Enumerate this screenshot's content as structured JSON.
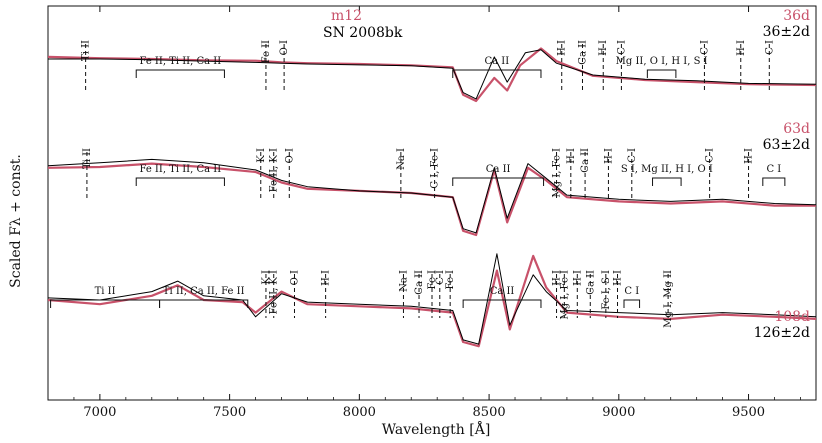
{
  "chart_data": {
    "type": "line",
    "title": "",
    "xlabel": "Wavelength [Å]",
    "ylabel": "Scaled Fλ + const.",
    "xlim": [
      6800,
      9760
    ],
    "x_ticks": [
      7000,
      7500,
      8000,
      8500,
      9000,
      9500
    ],
    "x_tick_labels": [
      "7000",
      "7500",
      "8000",
      "8500",
      "9000",
      "9500"
    ],
    "y_ticks": "none",
    "grid": false,
    "legend": {
      "model_name": "m12",
      "object_name": "SN 2008bk",
      "model_color": "#c8526a",
      "object_color": "#000000"
    },
    "epochs": [
      {
        "model_epoch": "36d",
        "observed_epoch": "36±2d"
      },
      {
        "model_epoch": "63d",
        "observed_epoch": "63±2d"
      },
      {
        "model_epoch": "108d",
        "observed_epoch": "126±2d"
      }
    ],
    "series": [
      {
        "name": "m12 36d",
        "color": "#c8526a",
        "offset": 2,
        "points": [
          [
            6800,
            0.55
          ],
          [
            7000,
            0.52
          ],
          [
            7200,
            0.5
          ],
          [
            7400,
            0.47
          ],
          [
            7600,
            0.46
          ],
          [
            7700,
            0.42
          ],
          [
            7800,
            0.4
          ],
          [
            8000,
            0.38
          ],
          [
            8200,
            0.35
          ],
          [
            8360,
            0.3
          ],
          [
            8400,
            -0.35
          ],
          [
            8450,
            -0.5
          ],
          [
            8520,
            0.05
          ],
          [
            8570,
            -0.25
          ],
          [
            8620,
            0.35
          ],
          [
            8700,
            0.75
          ],
          [
            8760,
            0.45
          ],
          [
            8900,
            0.1
          ],
          [
            9100,
            0.0
          ],
          [
            9300,
            -0.05
          ],
          [
            9500,
            -0.1
          ],
          [
            9760,
            -0.12
          ]
        ]
      },
      {
        "name": "SN 2008bk 36d",
        "color": "#000000",
        "offset": 2,
        "points": [
          [
            6800,
            0.5
          ],
          [
            7000,
            0.5
          ],
          [
            7200,
            0.48
          ],
          [
            7400,
            0.45
          ],
          [
            7600,
            0.42
          ],
          [
            7700,
            0.4
          ],
          [
            7800,
            0.38
          ],
          [
            8000,
            0.36
          ],
          [
            8200,
            0.34
          ],
          [
            8360,
            0.28
          ],
          [
            8400,
            -0.3
          ],
          [
            8450,
            -0.45
          ],
          [
            8520,
            0.55
          ],
          [
            8570,
            -0.05
          ],
          [
            8640,
            0.65
          ],
          [
            8700,
            0.72
          ],
          [
            8760,
            0.4
          ],
          [
            8900,
            0.12
          ],
          [
            9100,
            0.02
          ],
          [
            9300,
            -0.02
          ],
          [
            9500,
            -0.08
          ],
          [
            9760,
            -0.1
          ]
        ]
      },
      {
        "name": "m12 63d",
        "color": "#c8526a",
        "offset": 1,
        "points": [
          [
            6800,
            0.6
          ],
          [
            7000,
            0.62
          ],
          [
            7200,
            0.7
          ],
          [
            7400,
            0.62
          ],
          [
            7600,
            0.5
          ],
          [
            7700,
            0.25
          ],
          [
            7800,
            0.1
          ],
          [
            8000,
            0.05
          ],
          [
            8200,
            0.0
          ],
          [
            8360,
            -0.1
          ],
          [
            8400,
            -0.9
          ],
          [
            8450,
            -1.0
          ],
          [
            8520,
            0.55
          ],
          [
            8570,
            -0.7
          ],
          [
            8650,
            0.6
          ],
          [
            8720,
            0.3
          ],
          [
            8800,
            -0.1
          ],
          [
            9000,
            -0.2
          ],
          [
            9200,
            -0.25
          ],
          [
            9400,
            -0.2
          ],
          [
            9600,
            -0.3
          ],
          [
            9760,
            -0.3
          ]
        ]
      },
      {
        "name": "SN 2008bk 63d",
        "color": "#000000",
        "offset": 1,
        "points": [
          [
            6800,
            0.65
          ],
          [
            7000,
            0.72
          ],
          [
            7200,
            0.8
          ],
          [
            7400,
            0.72
          ],
          [
            7600,
            0.55
          ],
          [
            7700,
            0.3
          ],
          [
            7800,
            0.15
          ],
          [
            8000,
            0.05
          ],
          [
            8200,
            0.0
          ],
          [
            8360,
            -0.1
          ],
          [
            8400,
            -0.85
          ],
          [
            8450,
            -0.95
          ],
          [
            8520,
            0.6
          ],
          [
            8570,
            -0.6
          ],
          [
            8650,
            0.7
          ],
          [
            8720,
            0.35
          ],
          [
            8800,
            -0.05
          ],
          [
            9000,
            -0.15
          ],
          [
            9200,
            -0.2
          ],
          [
            9400,
            -0.15
          ],
          [
            9600,
            -0.25
          ],
          [
            9760,
            -0.28
          ]
        ]
      },
      {
        "name": "m12 108d",
        "color": "#c8526a",
        "offset": 0,
        "points": [
          [
            6800,
            0.0
          ],
          [
            7000,
            -0.1
          ],
          [
            7200,
            0.1
          ],
          [
            7300,
            0.35
          ],
          [
            7400,
            0.0
          ],
          [
            7550,
            -0.05
          ],
          [
            7600,
            -0.3
          ],
          [
            7700,
            0.2
          ],
          [
            7800,
            -0.1
          ],
          [
            8000,
            -0.15
          ],
          [
            8200,
            -0.2
          ],
          [
            8360,
            -0.3
          ],
          [
            8400,
            -1.0
          ],
          [
            8460,
            -1.1
          ],
          [
            8530,
            0.7
          ],
          [
            8580,
            -0.7
          ],
          [
            8670,
            1.05
          ],
          [
            8720,
            0.3
          ],
          [
            8800,
            -0.3
          ],
          [
            9000,
            -0.4
          ],
          [
            9200,
            -0.45
          ],
          [
            9400,
            -0.35
          ],
          [
            9600,
            -0.4
          ],
          [
            9760,
            -0.45
          ]
        ]
      },
      {
        "name": "SN 2008bk 126d",
        "color": "#000000",
        "offset": 0,
        "points": [
          [
            6800,
            0.05
          ],
          [
            7000,
            0.0
          ],
          [
            7200,
            0.2
          ],
          [
            7300,
            0.45
          ],
          [
            7400,
            0.1
          ],
          [
            7550,
            0.0
          ],
          [
            7600,
            -0.4
          ],
          [
            7700,
            0.15
          ],
          [
            7800,
            -0.05
          ],
          [
            8000,
            -0.1
          ],
          [
            8200,
            -0.15
          ],
          [
            8360,
            -0.25
          ],
          [
            8400,
            -0.95
          ],
          [
            8460,
            -1.05
          ],
          [
            8530,
            1.1
          ],
          [
            8580,
            -0.6
          ],
          [
            8670,
            0.6
          ],
          [
            8720,
            0.2
          ],
          [
            8800,
            -0.25
          ],
          [
            9000,
            -0.3
          ],
          [
            9200,
            -0.35
          ],
          [
            9400,
            -0.3
          ],
          [
            9600,
            -0.35
          ],
          [
            9760,
            -0.4
          ]
        ]
      }
    ],
    "annotations": [
      {
        "panel": 0,
        "label": "Ti II",
        "x": 6945
      },
      {
        "panel": 0,
        "label": "Fe II, Ti II, Ca II",
        "x_range": [
          7140,
          7480
        ]
      },
      {
        "panel": 0,
        "label": "Fe II",
        "x": 7640
      },
      {
        "panel": 0,
        "label": "O I",
        "x": 7710
      },
      {
        "panel": 0,
        "label": "Ca II",
        "x_range": [
          8360,
          8700
        ]
      },
      {
        "panel": 0,
        "label": "H I",
        "x": 8780
      },
      {
        "panel": 0,
        "label": "Ca II",
        "x": 8860
      },
      {
        "panel": 0,
        "label": "H I",
        "x": 8940
      },
      {
        "panel": 0,
        "label": "C I",
        "x": 9010
      },
      {
        "panel": 0,
        "label": "Mg II, O I, H I, S I",
        "x_range": [
          9110,
          9220
        ]
      },
      {
        "panel": 0,
        "label": "C I",
        "x": 9330
      },
      {
        "panel": 0,
        "label": "H I",
        "x": 9470
      },
      {
        "panel": 0,
        "label": "C I",
        "x": 9580
      },
      {
        "panel": 1,
        "label": "Ti II",
        "x": 6950
      },
      {
        "panel": 1,
        "label": "Fe II, Ti II, Ca II",
        "x_range": [
          7140,
          7480
        ]
      },
      {
        "panel": 1,
        "label": "K I",
        "x": 7620
      },
      {
        "panel": 1,
        "label": "Fe II, K I",
        "x": 7670
      },
      {
        "panel": 1,
        "label": "O I",
        "x": 7730
      },
      {
        "panel": 1,
        "label": "Na I",
        "x": 8160
      },
      {
        "panel": 1,
        "label": "C I, Fe I",
        "x": 8290
      },
      {
        "panel": 1,
        "label": "Ca II",
        "x_range": [
          8360,
          8710
        ]
      },
      {
        "panel": 1,
        "label": "Mg I, Fe I",
        "x": 8760
      },
      {
        "panel": 1,
        "label": "H I",
        "x": 8815
      },
      {
        "panel": 1,
        "label": "Ca II",
        "x": 8870
      },
      {
        "panel": 1,
        "label": "H I",
        "x": 8960
      },
      {
        "panel": 1,
        "label": "C I",
        "x": 9050
      },
      {
        "panel": 1,
        "label": "S I, Mg II, H I, O I",
        "x_range": [
          9130,
          9240
        ]
      },
      {
        "panel": 1,
        "label": "C I",
        "x": 9350
      },
      {
        "panel": 1,
        "label": "H I",
        "x": 9500
      },
      {
        "panel": 1,
        "label": "C I",
        "x_range": [
          9555,
          9640
        ]
      },
      {
        "panel": 2,
        "label": "Ti II",
        "x_range": [
          6810,
          7230
        ]
      },
      {
        "panel": 2,
        "label": "Ti II, Ca II, Fe II",
        "x_range": [
          7230,
          7570
        ]
      },
      {
        "panel": 2,
        "label": "K I",
        "x": 7640
      },
      {
        "panel": 2,
        "label": "Fe II, K I",
        "x": 7670
      },
      {
        "panel": 2,
        "label": "O I",
        "x": 7750
      },
      {
        "panel": 2,
        "label": "H I",
        "x": 7870
      },
      {
        "panel": 2,
        "label": "Na I",
        "x": 8170
      },
      {
        "panel": 2,
        "label": "Ca II",
        "x": 8230
      },
      {
        "panel": 2,
        "label": "Fe I",
        "x": 8280
      },
      {
        "panel": 2,
        "label": "C I",
        "x": 8310
      },
      {
        "panel": 2,
        "label": "Fe I",
        "x": 8350
      },
      {
        "panel": 2,
        "label": "Ca II",
        "x_range": [
          8400,
          8700
        ]
      },
      {
        "panel": 2,
        "label": "H I",
        "x": 8760
      },
      {
        "panel": 2,
        "label": "Mg I, Fe I",
        "x": 8790
      },
      {
        "panel": 2,
        "label": "H I",
        "x": 8840
      },
      {
        "panel": 2,
        "label": "Ca II",
        "x": 8890
      },
      {
        "panel": 2,
        "label": "Fe I, S I",
        "x": 8950
      },
      {
        "panel": 2,
        "label": "H I",
        "x": 8995
      },
      {
        "panel": 2,
        "label": "C I",
        "x_range": [
          9020,
          9080
        ]
      },
      {
        "panel": 2,
        "label": "Mg I, Mg II",
        "x": 9190
      }
    ]
  }
}
